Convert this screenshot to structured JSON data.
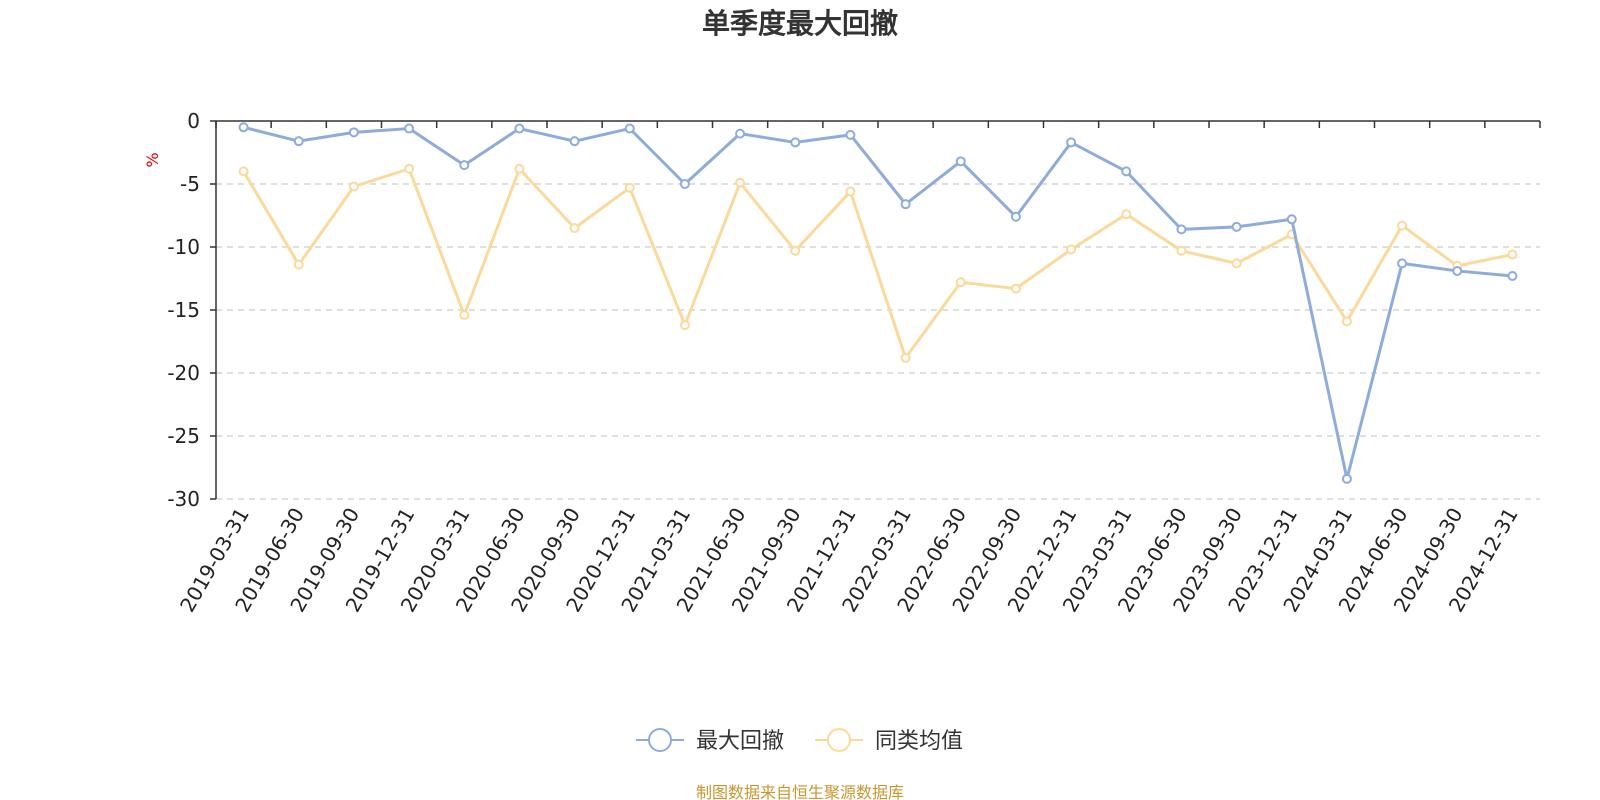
{
  "chart_data": {
    "type": "line",
    "title": "单季度最大回撤",
    "ylabel": "%",
    "ylim": [
      -30,
      0
    ],
    "yticks": [
      0,
      -5,
      -10,
      -15,
      -20,
      -25,
      -30
    ],
    "grid": true,
    "legend_position": "bottom",
    "x": [
      "2019-03-31",
      "2019-06-30",
      "2019-09-30",
      "2019-12-31",
      "2020-03-31",
      "2020-06-30",
      "2020-09-30",
      "2020-12-31",
      "2021-03-31",
      "2021-06-30",
      "2021-09-30",
      "2021-12-31",
      "2022-03-31",
      "2022-06-30",
      "2022-09-30",
      "2022-12-31",
      "2023-03-31",
      "2023-06-30",
      "2023-09-30",
      "2023-12-31",
      "2024-03-31",
      "2024-06-30",
      "2024-09-30",
      "2024-12-31"
    ],
    "series": [
      {
        "name": "最大回撤",
        "color": "#8eacd9",
        "values": [
          -0.5,
          -1.6,
          -0.9,
          -0.6,
          -3.5,
          -0.6,
          -1.6,
          -0.6,
          -5.0,
          -1.0,
          -1.7,
          -1.1,
          -6.6,
          -3.2,
          -7.6,
          -1.7,
          -4.0,
          -8.6,
          -8.4,
          -7.8,
          -28.4,
          -11.3,
          -11.9,
          -12.3
        ]
      },
      {
        "name": "同类均值",
        "color": "#fbd99b",
        "values": [
          -4.0,
          -11.4,
          -5.2,
          -3.8,
          -15.4,
          -3.8,
          -8.5,
          -5.3,
          -16.2,
          -4.9,
          -10.3,
          -5.6,
          -18.8,
          -12.8,
          -13.3,
          -10.2,
          -7.4,
          -10.3,
          -11.3,
          -9.0,
          -15.9,
          -8.3,
          -11.5,
          -10.6
        ]
      }
    ]
  },
  "source_note": "制图数据来自恒生聚源数据库"
}
